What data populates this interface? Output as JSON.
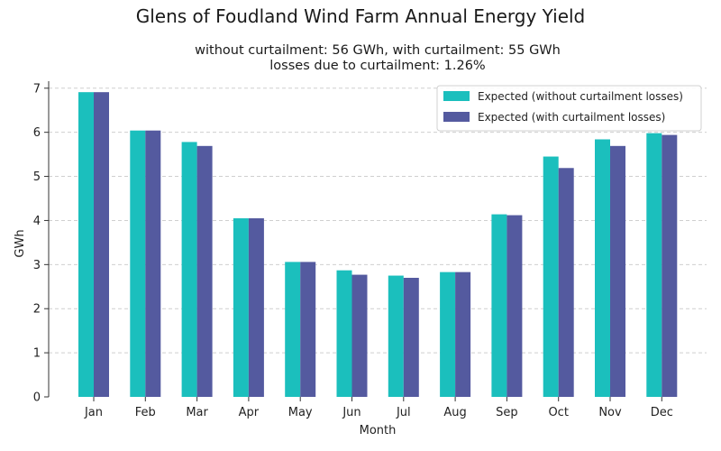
{
  "chart_data": {
    "type": "bar",
    "title": "Glens of Foudland Wind Farm Annual Energy Yield",
    "subtitle_lines": [
      "without curtailment: 56 GWh, with curtailment: 55 GWh",
      "losses due to curtailment: 1.26%"
    ],
    "xlabel": "Month",
    "ylabel": "GWh",
    "ylim": [
      0,
      7.2
    ],
    "yticks": [
      0,
      1,
      2,
      3,
      4,
      5,
      6,
      7
    ],
    "grid": "horizontal dashed",
    "legend_position": "top-right",
    "categories": [
      "Jan",
      "Feb",
      "Mar",
      "Apr",
      "May",
      "Jun",
      "Jul",
      "Aug",
      "Sep",
      "Oct",
      "Nov",
      "Dec"
    ],
    "series": [
      {
        "name": "Expected (without curtailment losses)",
        "color": "#1bbfbd",
        "values": [
          6.91,
          6.04,
          5.78,
          4.05,
          3.06,
          2.87,
          2.75,
          2.83,
          4.14,
          5.45,
          5.84,
          5.98
        ]
      },
      {
        "name": "Expected (with curtailment losses)",
        "color": "#545a9f",
        "values": [
          6.91,
          6.04,
          5.69,
          4.05,
          3.06,
          2.77,
          2.7,
          2.83,
          4.12,
          5.19,
          5.69,
          5.94
        ]
      }
    ]
  }
}
